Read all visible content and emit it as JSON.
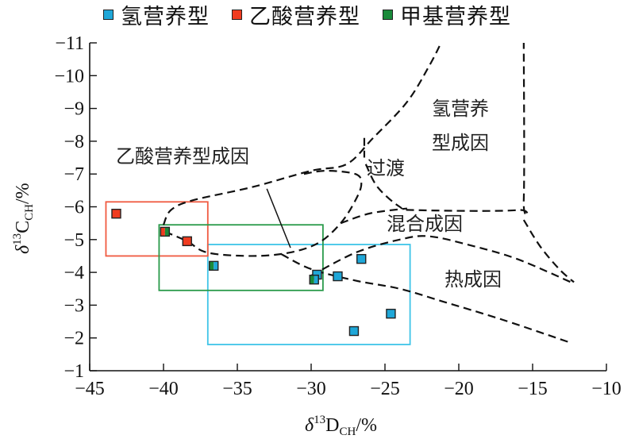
{
  "chart_data": {
    "type": "scatter",
    "title": "",
    "xlabel": {
      "prefix": "δ",
      "sup": "13",
      "main": "D",
      "sub": "CH",
      "suffix": "/%"
    },
    "ylabel": {
      "prefix": "δ",
      "sup": "13",
      "main": "C",
      "sub": "CH",
      "suffix": "/%"
    },
    "xlim": [
      -45,
      -10
    ],
    "ylim": [
      -1,
      -11
    ],
    "xticks": [
      -45,
      -40,
      -35,
      -30,
      -25,
      -20,
      -15,
      -10
    ],
    "yticks": [
      -11,
      -10,
      -9,
      -8,
      -7,
      -6,
      -5,
      -4,
      -3,
      -2,
      -1
    ],
    "xtick_labels": [
      "−45",
      "−40",
      "−35",
      "−30",
      "−25",
      "−20",
      "−15",
      "−10"
    ],
    "ytick_labels": [
      "−11",
      "−10",
      "−9",
      "−8",
      "−7",
      "−6",
      "−5",
      "−4",
      "−3",
      "−2",
      "−1"
    ],
    "grid": false,
    "legend_position": "top",
    "series": [
      {
        "name": "氢营养型",
        "color": "#1fa7d8",
        "box_color": "#3fc4e8",
        "points": [
          [
            -29.6,
            -3.93
          ],
          [
            -26.6,
            -4.41
          ],
          [
            -28.2,
            -3.88
          ],
          [
            -24.6,
            -2.74
          ],
          [
            -27.1,
            -2.21
          ]
        ],
        "box": [
          [
            -37.0,
            -4.85
          ],
          [
            -23.3,
            -1.8
          ]
        ]
      },
      {
        "name": "乙酸营养型",
        "color": "#f03c20",
        "box_color": "#f05a40",
        "points": [
          [
            -43.2,
            -5.79
          ],
          [
            -38.4,
            -4.95
          ]
        ],
        "box": [
          [
            -43.9,
            -6.15
          ],
          [
            -37.0,
            -4.5
          ]
        ]
      },
      {
        "name": "甲基营养型",
        "color": "#1a8a3a",
        "box_color": "#2a9a4a",
        "points": [],
        "box": [
          [
            -40.3,
            -5.45
          ],
          [
            -29.2,
            -3.45
          ]
        ]
      }
    ],
    "mixed_points": [
      {
        "colors": [
          "#f03c20",
          "#1a8a3a"
        ],
        "x": -39.9,
        "y": -5.24
      },
      {
        "colors": [
          "#1a8a3a",
          "#1fa7d8"
        ],
        "x": -36.6,
        "y": -4.2
      },
      {
        "colors": [
          "#1a8a3a",
          "#1fa7d8"
        ],
        "x": -29.8,
        "y": -3.78
      }
    ],
    "regions": [
      {
        "label": "乙酸营养型成因"
      },
      {
        "label_lines": [
          "氢营养",
          "型成因"
        ]
      },
      {
        "label": "过渡"
      },
      {
        "label": "混合成因"
      },
      {
        "label": "热成因"
      }
    ],
    "boundaries": [
      {
        "name": "acetate-upper",
        "points": [
          [
            -40.0,
            -5.45
          ],
          [
            -39.5,
            -5.9
          ],
          [
            -38,
            -6.2
          ],
          [
            -34,
            -6.6
          ],
          [
            -30,
            -7.1
          ],
          [
            -27.6,
            -7.3
          ],
          [
            -25.8,
            -8.1
          ],
          [
            -23.5,
            -9.2
          ],
          [
            -22.0,
            -10.3
          ],
          [
            -21.2,
            -11.0
          ]
        ]
      },
      {
        "name": "acetate-lower",
        "points": [
          [
            -39.9,
            -5.24
          ],
          [
            -38.4,
            -4.95
          ],
          [
            -37,
            -4.6
          ],
          [
            -34,
            -4.5
          ],
          [
            -31.5,
            -4.6
          ],
          [
            -29.5,
            -4.9
          ],
          [
            -28.0,
            -5.5
          ],
          [
            -27.0,
            -6.2
          ],
          [
            -26.6,
            -6.7
          ],
          [
            -27.0,
            -7.0
          ],
          [
            -29.0,
            -7.1
          ],
          [
            -30.5,
            -7.0
          ]
        ]
      },
      {
        "name": "transition-vertical",
        "points": [
          [
            -26.4,
            -8.1
          ],
          [
            -26.4,
            -7.5
          ]
        ]
      },
      {
        "name": "transition-lower",
        "points": [
          [
            -26.3,
            -7.3
          ],
          [
            -25.5,
            -6.6
          ],
          [
            -24.0,
            -6.0
          ],
          [
            -23.0,
            -5.9
          ],
          [
            -16.0,
            -5.9
          ],
          [
            -15.6,
            -6.2
          ],
          [
            -15.6,
            -11.0
          ]
        ]
      },
      {
        "name": "mixed-upper",
        "points": [
          [
            -28.0,
            -5.5
          ],
          [
            -26,
            -5.8
          ],
          [
            -23.5,
            -5.95
          ]
        ]
      },
      {
        "name": "mixed-lower",
        "points": [
          [
            -30.0,
            -3.9
          ],
          [
            -27.0,
            -4.6
          ],
          [
            -24.0,
            -5.0
          ],
          [
            -22.0,
            -5.1
          ],
          [
            -19.0,
            -4.8
          ],
          [
            -16.0,
            -4.4
          ],
          [
            -12.4,
            -3.7
          ]
        ]
      },
      {
        "name": "hydrogen-right",
        "points": [
          [
            -15.6,
            -5.6
          ],
          [
            -14.5,
            -4.8
          ],
          [
            -13.2,
            -4.1
          ],
          [
            -12.2,
            -3.7
          ]
        ]
      },
      {
        "name": "thermal-lower",
        "points": [
          [
            -32.0,
            -4.55
          ],
          [
            -30,
            -4.1
          ],
          [
            -27,
            -3.75
          ],
          [
            -24,
            -3.5
          ],
          [
            -21,
            -3.1
          ],
          [
            -17,
            -2.55
          ],
          [
            -12.4,
            -1.85
          ]
        ]
      }
    ],
    "pointer_line": [
      [
        -33.0,
        -6.55
      ],
      [
        -31.4,
        -4.75
      ]
    ]
  }
}
